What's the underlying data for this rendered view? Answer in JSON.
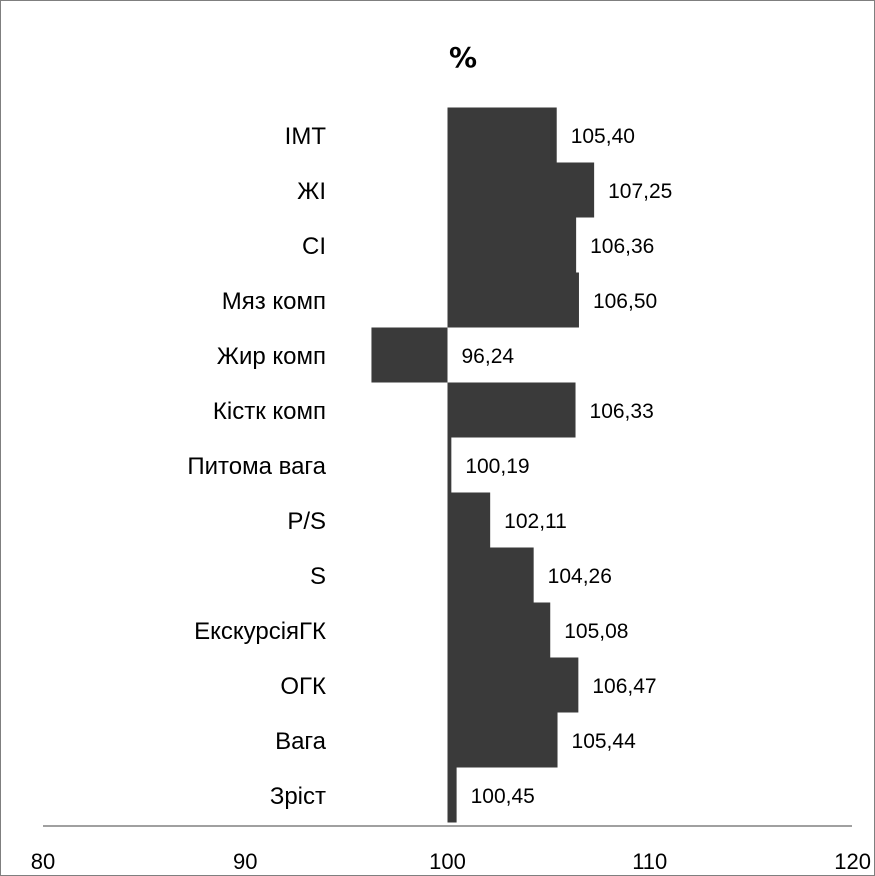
{
  "chart_data": {
    "type": "bar",
    "orientation": "horizontal",
    "title": "%",
    "baseline": 100,
    "xlim": [
      80,
      120
    ],
    "x_ticks": [
      "80",
      "90",
      "100",
      "110",
      "120"
    ],
    "categories": [
      "ІМТ",
      "ЖІ",
      "СІ",
      "Мяз комп",
      "Жир комп",
      "Кістк комп",
      "Питома вага",
      "P/S",
      "S",
      "ЕкскурсіяГК",
      "ОГК",
      "Вага",
      "Зріст"
    ],
    "values": [
      105.4,
      107.25,
      106.36,
      106.5,
      96.24,
      106.33,
      100.19,
      102.11,
      104.26,
      105.08,
      106.47,
      105.44,
      100.45
    ],
    "value_labels": [
      "105,40",
      "107,25",
      "106,36",
      "106,50",
      "96,24",
      "106,33",
      "100,19",
      "102,11",
      "104,26",
      "105,08",
      "106,47",
      "105,44",
      "100,45"
    ],
    "bar_color": "#3a3a3a",
    "grid": false,
    "legend": "none"
  }
}
